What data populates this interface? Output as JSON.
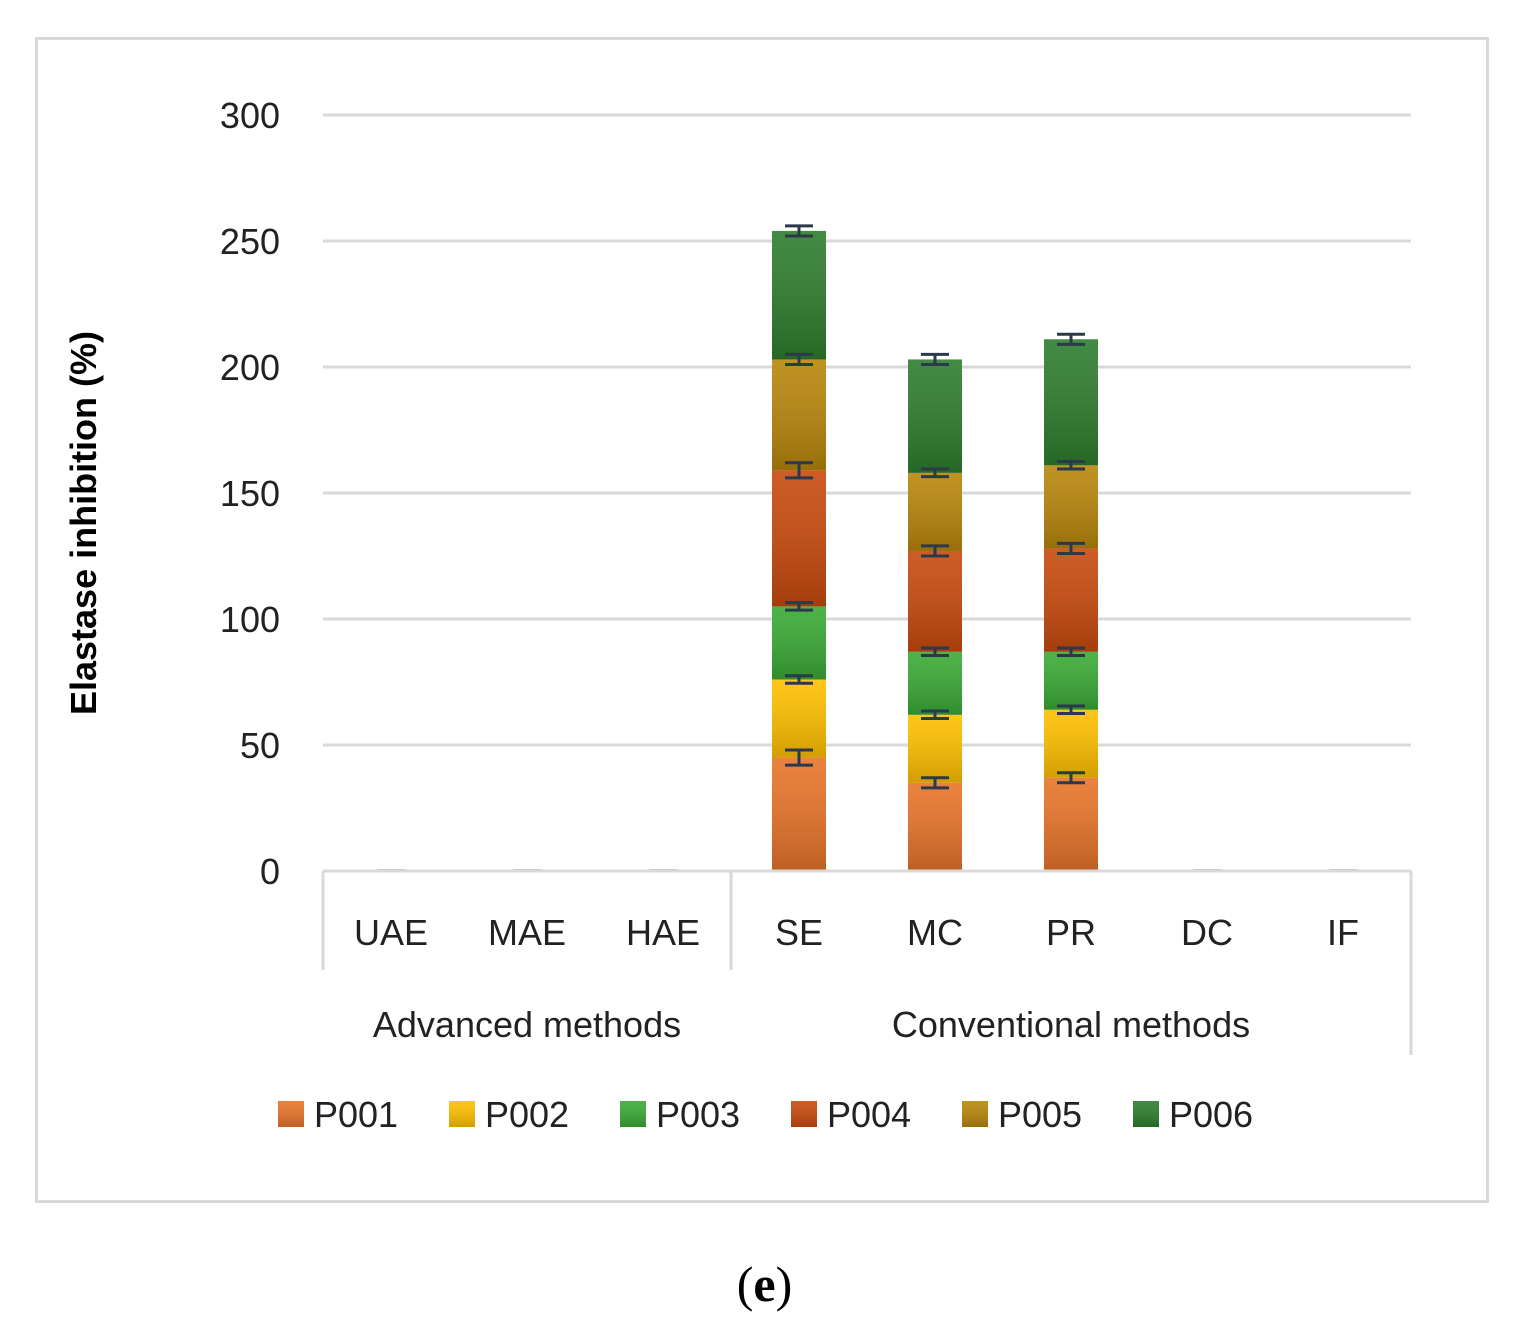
{
  "chart_data": {
    "type": "bar",
    "stacked": true,
    "ylabel": "Elastase inhibition (%)",
    "ylim": [
      0,
      300
    ],
    "yticks": [
      0,
      50,
      100,
      150,
      200,
      250,
      300
    ],
    "categories": [
      "UAE",
      "MAE",
      "HAE",
      "SE",
      "MC",
      "PR",
      "DC",
      "IF"
    ],
    "groups": [
      {
        "label": "Advanced methods",
        "categories": [
          "UAE",
          "MAE",
          "HAE"
        ]
      },
      {
        "label": "Conventional methods",
        "categories": [
          "SE",
          "MC",
          "PR",
          "DC",
          "IF"
        ]
      }
    ],
    "legend_position": "bottom",
    "series": [
      {
        "name": "P001",
        "color": "#e8742a",
        "values": [
          0,
          0,
          0,
          45,
          35,
          37,
          0,
          0
        ],
        "errors": [
          0,
          0,
          0,
          3,
          2,
          2,
          0,
          0
        ]
      },
      {
        "name": "P002",
        "color": "#ffc000",
        "values": [
          0,
          0,
          0,
          31,
          27,
          27,
          0,
          0
        ],
        "errors": [
          0,
          0,
          0,
          1.5,
          1.5,
          1.5,
          0,
          0
        ]
      },
      {
        "name": "P003",
        "color": "#3aaa35",
        "values": [
          0,
          0,
          0,
          29,
          25,
          23,
          0,
          0
        ],
        "errors": [
          0,
          0,
          0,
          1.5,
          1.5,
          1.5,
          0,
          0
        ]
      },
      {
        "name": "P004",
        "color": "#c84a0e",
        "values": [
          0,
          0,
          0,
          54,
          40,
          41,
          0,
          0
        ],
        "errors": [
          0,
          0,
          0,
          3,
          2,
          2,
          0,
          0
        ]
      },
      {
        "name": "P005",
        "color": "#b8860b",
        "values": [
          0,
          0,
          0,
          44,
          31,
          33,
          0,
          0
        ],
        "errors": [
          0,
          0,
          0,
          2,
          1.5,
          1.5,
          0,
          0
        ]
      },
      {
        "name": "P006",
        "color": "#2e7d2e",
        "values": [
          0,
          0,
          0,
          51,
          45,
          50,
          0,
          0
        ],
        "errors": [
          0,
          0,
          0,
          2,
          2,
          2,
          0,
          0
        ]
      }
    ]
  },
  "panel_label": "e",
  "panel_label_open": "(",
  "panel_label_close": ")"
}
